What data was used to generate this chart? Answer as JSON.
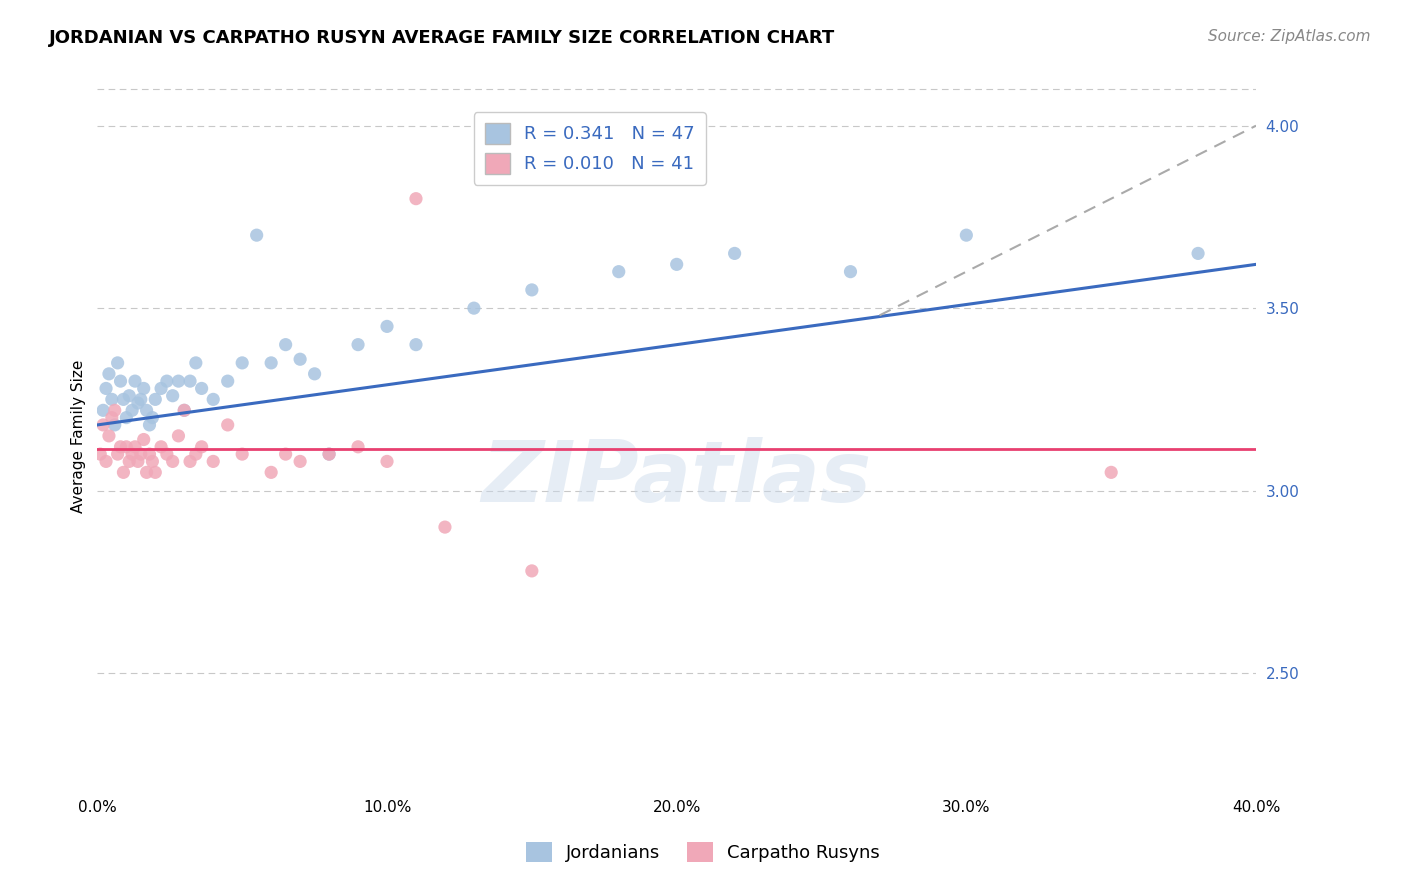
{
  "title": "JORDANIAN VS CARPATHO RUSYN AVERAGE FAMILY SIZE CORRELATION CHART",
  "source_text": "Source: ZipAtlas.com",
  "ylabel": "Average Family Size",
  "x_min": 0.0,
  "x_max": 0.4,
  "y_min": 2.18,
  "y_max": 4.12,
  "y_ticks": [
    2.5,
    3.0,
    3.5,
    4.0
  ],
  "x_ticks": [
    0.0,
    0.1,
    0.2,
    0.3,
    0.4
  ],
  "x_tick_labels": [
    "0.0%",
    "10.0%",
    "20.0%",
    "30.0%",
    "40.0%"
  ],
  "background_color": "#ffffff",
  "grid_color": "#c8c8c8",
  "jordanian_color": "#a8c4e0",
  "carpatho_color": "#f0a8b8",
  "jordanian_line_color": "#3a6abf",
  "carpatho_line_color": "#e84070",
  "dashed_line_color": "#aaaaaa",
  "legend_R1": "R = 0.341",
  "legend_N1": "N = 47",
  "legend_R2": "R = 0.010",
  "legend_N2": "N = 41",
  "label1": "Jordanians",
  "label2": "Carpatho Rusyns",
  "jordanian_x": [
    0.002,
    0.003,
    0.004,
    0.005,
    0.006,
    0.007,
    0.008,
    0.009,
    0.01,
    0.011,
    0.012,
    0.013,
    0.014,
    0.015,
    0.016,
    0.017,
    0.018,
    0.019,
    0.02,
    0.022,
    0.024,
    0.026,
    0.028,
    0.03,
    0.032,
    0.034,
    0.036,
    0.04,
    0.045,
    0.05,
    0.055,
    0.06,
    0.065,
    0.07,
    0.075,
    0.08,
    0.09,
    0.1,
    0.11,
    0.13,
    0.15,
    0.18,
    0.2,
    0.22,
    0.26,
    0.3,
    0.38
  ],
  "jordanian_y": [
    3.22,
    3.28,
    3.32,
    3.25,
    3.18,
    3.35,
    3.3,
    3.25,
    3.2,
    3.26,
    3.22,
    3.3,
    3.24,
    3.25,
    3.28,
    3.22,
    3.18,
    3.2,
    3.25,
    3.28,
    3.3,
    3.26,
    3.3,
    3.22,
    3.3,
    3.35,
    3.28,
    3.25,
    3.3,
    3.35,
    3.7,
    3.35,
    3.4,
    3.36,
    3.32,
    3.1,
    3.4,
    3.45,
    3.4,
    3.5,
    3.55,
    3.6,
    3.62,
    3.65,
    3.6,
    3.7,
    3.65
  ],
  "carpatho_x": [
    0.001,
    0.002,
    0.003,
    0.004,
    0.005,
    0.006,
    0.007,
    0.008,
    0.009,
    0.01,
    0.011,
    0.012,
    0.013,
    0.014,
    0.015,
    0.016,
    0.017,
    0.018,
    0.019,
    0.02,
    0.022,
    0.024,
    0.026,
    0.028,
    0.03,
    0.032,
    0.034,
    0.036,
    0.04,
    0.045,
    0.05,
    0.06,
    0.065,
    0.07,
    0.08,
    0.09,
    0.1,
    0.11,
    0.12,
    0.15,
    0.35
  ],
  "carpatho_y": [
    3.1,
    3.18,
    3.08,
    3.15,
    3.2,
    3.22,
    3.1,
    3.12,
    3.05,
    3.12,
    3.08,
    3.1,
    3.12,
    3.08,
    3.1,
    3.14,
    3.05,
    3.1,
    3.08,
    3.05,
    3.12,
    3.1,
    3.08,
    3.15,
    3.22,
    3.08,
    3.1,
    3.12,
    3.08,
    3.18,
    3.1,
    3.05,
    3.1,
    3.08,
    3.1,
    3.12,
    3.08,
    3.8,
    2.9,
    2.78,
    3.05
  ],
  "blue_line_x0": 0.0,
  "blue_line_y0": 3.18,
  "blue_line_x1": 0.4,
  "blue_line_y1": 3.62,
  "pink_line_y": 3.115,
  "dash_line_x0": 0.27,
  "dash_line_y0": 3.48,
  "dash_line_x1": 0.4,
  "dash_line_y1": 4.0,
  "title_fontsize": 13,
  "axis_label_fontsize": 11,
  "tick_fontsize": 11,
  "legend_fontsize": 13,
  "source_fontsize": 11,
  "watermark_text": "ZIPatlas",
  "watermark_color": "#c8d8ea",
  "watermark_fontsize": 62,
  "watermark_alpha": 0.45
}
